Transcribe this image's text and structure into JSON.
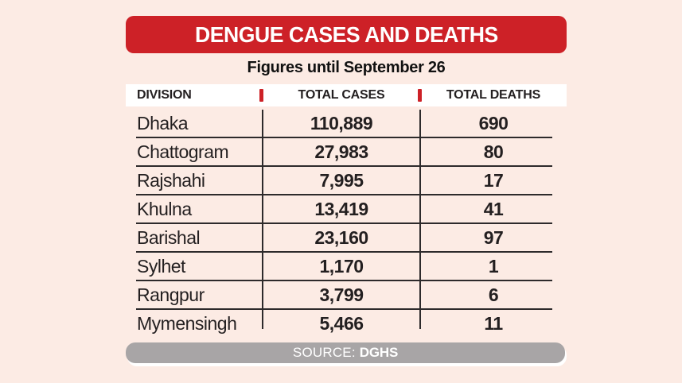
{
  "page": {
    "background_color": "#fcebe4"
  },
  "banner": {
    "title": "DENGUE CASES AND DEATHS",
    "background_color": "#cd2127",
    "text_color": "#ffffff"
  },
  "subtitle": "Figures until September 26",
  "table": {
    "headers": [
      "DIVISION",
      "TOTAL CASES",
      "TOTAL DEATHS"
    ],
    "separator_color": "#cd2127",
    "line_color": "#2d2a2b",
    "rows": [
      {
        "division": "Dhaka",
        "cases": "110,889",
        "deaths": "690"
      },
      {
        "division": "Chattogram",
        "cases": "27,983",
        "deaths": "80"
      },
      {
        "division": "Rajshahi",
        "cases": "7,995",
        "deaths": "17"
      },
      {
        "division": "Khulna",
        "cases": "13,419",
        "deaths": "41"
      },
      {
        "division": "Barishal",
        "cases": "23,160",
        "deaths": "97"
      },
      {
        "division": "Sylhet",
        "cases": "1,170",
        "deaths": "1"
      },
      {
        "division": "Rangpur",
        "cases": "3,799",
        "deaths": "6"
      },
      {
        "division": "Mymensingh",
        "cases": "5,466",
        "deaths": "11"
      }
    ]
  },
  "footer": {
    "source_label": "SOURCE:",
    "source_value": "DGHS",
    "background_color": "#a8a5a6"
  },
  "chart_data": {
    "type": "table",
    "title": "DENGUE CASES AND DEATHS",
    "subtitle": "Figures until September 26",
    "columns": [
      "DIVISION",
      "TOTAL CASES",
      "TOTAL DEATHS"
    ],
    "rows": [
      [
        "Dhaka",
        110889,
        690
      ],
      [
        "Chattogram",
        27983,
        80
      ],
      [
        "Rajshahi",
        7995,
        17
      ],
      [
        "Khulna",
        13419,
        41
      ],
      [
        "Barishal",
        23160,
        97
      ],
      [
        "Sylhet",
        1170,
        1
      ],
      [
        "Rangpur",
        3799,
        6
      ],
      [
        "Mymensingh",
        5466,
        11
      ]
    ],
    "source": "DGHS"
  }
}
